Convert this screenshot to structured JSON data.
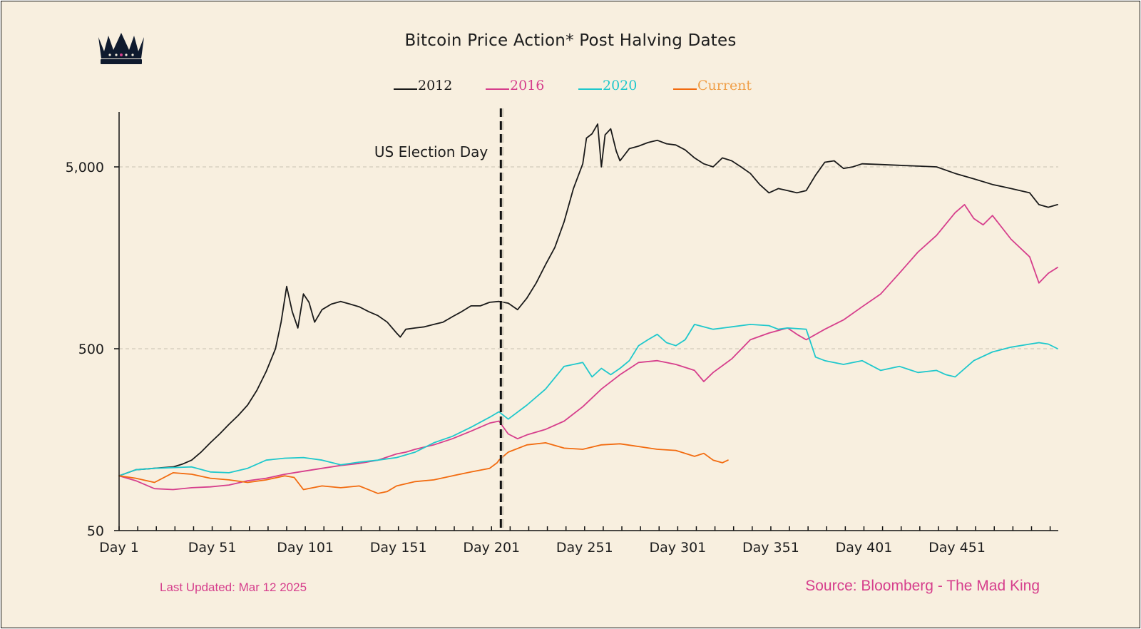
{
  "header": {
    "title": "Bitcoin Price Action* Post Halving Dates"
  },
  "footer": {
    "updated": "Last Updated: Mar 12 2025",
    "source": "Source: Bloomberg - The Mad King"
  },
  "colors": {
    "background": "#f8efdf",
    "grid": "#c9c2b2",
    "axis": "#111111",
    "accent": "#d63e8c"
  },
  "icons": {
    "logo": "crown-icon"
  },
  "chart_data": {
    "type": "line",
    "title": "Bitcoin Price Action* Post Halving Dates",
    "xlabel": "",
    "ylabel": "",
    "yscale": "log",
    "ylim": [
      50,
      9000
    ],
    "xlim": [
      1,
      505
    ],
    "x_ticks": [
      "Day 1",
      "Day 51",
      "Day 101",
      "Day 151",
      "Day 201",
      "Day 251",
      "Day 301",
      "Day 351",
      "Day 401",
      "Day 451"
    ],
    "x_tick_values": [
      1,
      51,
      101,
      151,
      201,
      251,
      301,
      351,
      401,
      451
    ],
    "y_ticks": [
      "50",
      "500",
      "5,000"
    ],
    "y_tick_values": [
      50,
      500,
      5000
    ],
    "grid": "horizontal dashed",
    "legend_position": "top-center",
    "annotations": [
      {
        "text": "US Election Day",
        "x": 206,
        "style": "dashed vertical line"
      }
    ],
    "series": [
      {
        "name": "2012",
        "color": "#1a1a1a",
        "x": [
          1,
          10,
          20,
          30,
          35,
          40,
          45,
          50,
          55,
          60,
          65,
          70,
          75,
          80,
          85,
          88,
          91,
          94,
          97,
          100,
          103,
          106,
          110,
          115,
          120,
          125,
          130,
          135,
          140,
          145,
          150,
          152,
          155,
          160,
          165,
          170,
          175,
          180,
          185,
          190,
          195,
          200,
          205,
          210,
          215,
          220,
          225,
          230,
          235,
          240,
          245,
          250,
          252,
          255,
          258,
          260,
          262,
          265,
          268,
          270,
          275,
          280,
          285,
          290,
          295,
          300,
          305,
          310,
          315,
          320,
          325,
          330,
          335,
          340,
          345,
          350,
          355,
          360,
          365,
          370,
          375,
          380,
          385,
          390,
          395,
          400,
          410,
          420,
          430,
          440,
          450,
          460,
          470,
          480,
          490,
          495,
          500,
          505
        ],
        "values": [
          100,
          108,
          110,
          112,
          116,
          122,
          135,
          152,
          170,
          192,
          215,
          245,
          295,
          375,
          500,
          700,
          1100,
          800,
          650,
          1000,
          900,
          700,
          820,
          880,
          910,
          880,
          850,
          800,
          760,
          700,
          610,
          580,
          640,
          650,
          660,
          680,
          700,
          750,
          800,
          860,
          860,
          900,
          910,
          890,
          820,
          950,
          1150,
          1450,
          1800,
          2500,
          3800,
          5200,
          7200,
          7600,
          8600,
          5000,
          7500,
          8100,
          6100,
          5400,
          6300,
          6500,
          6800,
          7000,
          6700,
          6600,
          6200,
          5600,
          5200,
          5000,
          5600,
          5400,
          5000,
          4600,
          4000,
          3600,
          3800,
          3700,
          3600,
          3700,
          4500,
          5300,
          5400,
          4900,
          5000,
          5200,
          5150,
          5100,
          5050,
          5000,
          4600,
          4300,
          4000,
          3800,
          3600,
          3100,
          3000,
          3100
        ]
      },
      {
        "name": "2016",
        "color": "#d63e8c",
        "x": [
          1,
          10,
          20,
          30,
          40,
          50,
          60,
          70,
          80,
          90,
          100,
          110,
          120,
          130,
          140,
          150,
          155,
          160,
          170,
          180,
          190,
          200,
          205,
          210,
          215,
          220,
          230,
          240,
          250,
          260,
          270,
          280,
          290,
          300,
          310,
          315,
          320,
          330,
          340,
          350,
          360,
          365,
          370,
          380,
          390,
          400,
          410,
          420,
          430,
          440,
          450,
          455,
          460,
          465,
          470,
          480,
          490,
          495,
          500,
          505
        ],
        "values": [
          100,
          94,
          85,
          84,
          86,
          87,
          89,
          94,
          97,
          102,
          106,
          110,
          114,
          117,
          122,
          132,
          135,
          140,
          148,
          160,
          176,
          195,
          200,
          170,
          160,
          168,
          180,
          200,
          240,
          300,
          360,
          420,
          430,
          410,
          380,
          330,
          370,
          440,
          560,
          610,
          650,
          600,
          560,
          640,
          720,
          850,
          1000,
          1300,
          1700,
          2100,
          2800,
          3100,
          2600,
          2400,
          2700,
          2000,
          1600,
          1150,
          1300,
          1400
        ]
      },
      {
        "name": "2020",
        "color": "#1fc8cc",
        "x": [
          1,
          10,
          20,
          30,
          40,
          50,
          60,
          70,
          80,
          90,
          100,
          110,
          120,
          130,
          140,
          150,
          160,
          170,
          180,
          190,
          200,
          205,
          210,
          220,
          230,
          240,
          250,
          255,
          260,
          265,
          270,
          275,
          280,
          285,
          290,
          295,
          300,
          305,
          310,
          320,
          330,
          340,
          350,
          355,
          360,
          370,
          375,
          380,
          390,
          400,
          410,
          420,
          430,
          440,
          445,
          450,
          460,
          470,
          480,
          490,
          495,
          500,
          505
        ],
        "values": [
          100,
          108,
          110,
          111,
          112,
          105,
          104,
          110,
          122,
          125,
          126,
          122,
          115,
          119,
          122,
          126,
          135,
          152,
          165,
          185,
          210,
          225,
          205,
          245,
          300,
          400,
          420,
          350,
          390,
          360,
          390,
          430,
          520,
          560,
          600,
          540,
          520,
          560,
          680,
          640,
          660,
          680,
          670,
          640,
          650,
          640,
          450,
          430,
          410,
          430,
          380,
          400,
          370,
          380,
          360,
          350,
          430,
          480,
          510,
          530,
          540,
          530,
          500
        ]
      },
      {
        "name": "Current",
        "color": "#f26b0f",
        "x": [
          1,
          10,
          20,
          30,
          40,
          50,
          60,
          70,
          80,
          90,
          95,
          100,
          110,
          120,
          130,
          140,
          145,
          150,
          160,
          170,
          180,
          190,
          200,
          204,
          205,
          210,
          220,
          230,
          240,
          250,
          260,
          270,
          280,
          290,
          300,
          310,
          315,
          320,
          325,
          328
        ],
        "values": [
          100,
          97,
          92,
          104,
          102,
          97,
          95,
          92,
          95,
          100,
          98,
          84,
          88,
          86,
          88,
          80,
          82,
          88,
          93,
          95,
          100,
          105,
          110,
          118,
          122,
          135,
          148,
          152,
          142,
          140,
          148,
          150,
          145,
          140,
          138,
          128,
          133,
          122,
          118,
          122
        ]
      }
    ]
  }
}
